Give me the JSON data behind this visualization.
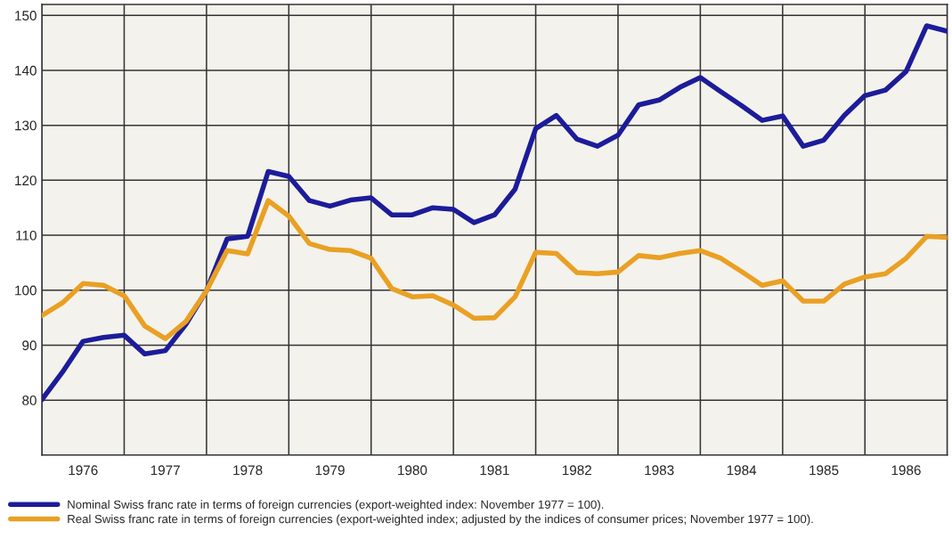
{
  "chart_data": {
    "type": "line",
    "x": [
      1976,
      1976.25,
      1976.5,
      1976.75,
      1977,
      1977.25,
      1977.5,
      1977.75,
      1978,
      1978.25,
      1978.5,
      1978.75,
      1979,
      1979.25,
      1979.5,
      1979.75,
      1980,
      1980.25,
      1980.5,
      1980.75,
      1981,
      1981.25,
      1981.5,
      1981.75,
      1982,
      1982.25,
      1982.5,
      1982.75,
      1983,
      1983.25,
      1983.5,
      1983.75,
      1984,
      1984.25,
      1984.5,
      1984.75,
      1985,
      1985.25,
      1985.5,
      1985.75,
      1986,
      1986.25,
      1986.5,
      1986.75,
      1987
    ],
    "series": [
      {
        "name": "Nominal Swiss franc rate in terms of foreign currencies (export-weighted index: November 1977 = 100).",
        "color": "#1c1c9a",
        "values": [
          80.1,
          85.1,
          90.7,
          91.4,
          91.8,
          88.4,
          89.0,
          93.8,
          99.9,
          109.3,
          109.8,
          121.6,
          120.7,
          116.3,
          115.3,
          116.4,
          116.8,
          113.7,
          113.7,
          115.0,
          114.7,
          112.3,
          113.7,
          118.4,
          129.4,
          131.8,
          127.5,
          126.2,
          128.2,
          133.7,
          134.6,
          136.9,
          138.7,
          136.1,
          133.6,
          130.9,
          131.7,
          126.2,
          127.3,
          131.8,
          135.4,
          136.4,
          139.8,
          148.1,
          147.1
        ]
      },
      {
        "name": "Real Swiss franc rate in terms of foreign currencies (export-weighted index; adjusted by the indices of consumer prices; November 1977 = 100).",
        "color": "#e9a024",
        "values": [
          95.4,
          97.7,
          101.2,
          100.9,
          99.0,
          93.5,
          91.2,
          94.3,
          99.9,
          107.2,
          106.6,
          116.3,
          113.5,
          108.5,
          107.4,
          107.2,
          105.8,
          100.3,
          98.8,
          99.0,
          97.3,
          94.9,
          95.0,
          98.8,
          106.9,
          106.7,
          103.2,
          103.0,
          103.3,
          106.3,
          105.9,
          106.7,
          107.2,
          105.8,
          103.4,
          100.9,
          101.7,
          98.0,
          98.0,
          101.1,
          102.4,
          103.0,
          105.8,
          109.8,
          109.6
        ]
      }
    ],
    "xlim": [
      1976,
      1987
    ],
    "xticks": [
      {
        "value": 1976,
        "label": null
      },
      {
        "value": 1976.5,
        "label": "1976"
      },
      {
        "value": 1977,
        "label": null
      },
      {
        "value": 1977.5,
        "label": "1977"
      },
      {
        "value": 1978,
        "label": null
      },
      {
        "value": 1978.5,
        "label": "1978"
      },
      {
        "value": 1979,
        "label": null
      },
      {
        "value": 1979.5,
        "label": "1979"
      },
      {
        "value": 1980,
        "label": null
      },
      {
        "value": 1980.5,
        "label": "1980"
      },
      {
        "value": 1981,
        "label": null
      },
      {
        "value": 1981.5,
        "label": "1981"
      },
      {
        "value": 1982,
        "label": null
      },
      {
        "value": 1982.5,
        "label": "1982"
      },
      {
        "value": 1983,
        "label": null
      },
      {
        "value": 1983.5,
        "label": "1983"
      },
      {
        "value": 1984,
        "label": null
      },
      {
        "value": 1984.5,
        "label": "1984"
      },
      {
        "value": 1985,
        "label": null
      },
      {
        "value": 1985.5,
        "label": "1985"
      },
      {
        "value": 1986,
        "label": null
      },
      {
        "value": 1986.5,
        "label": "1986"
      },
      {
        "value": 1987,
        "label": null
      }
    ],
    "ylim": [
      70,
      152
    ],
    "yticks": [
      80,
      90,
      100,
      110,
      120,
      130,
      140,
      150
    ],
    "grid": true,
    "legend": "bottom",
    "marker": "none",
    "line_style": "solid"
  }
}
